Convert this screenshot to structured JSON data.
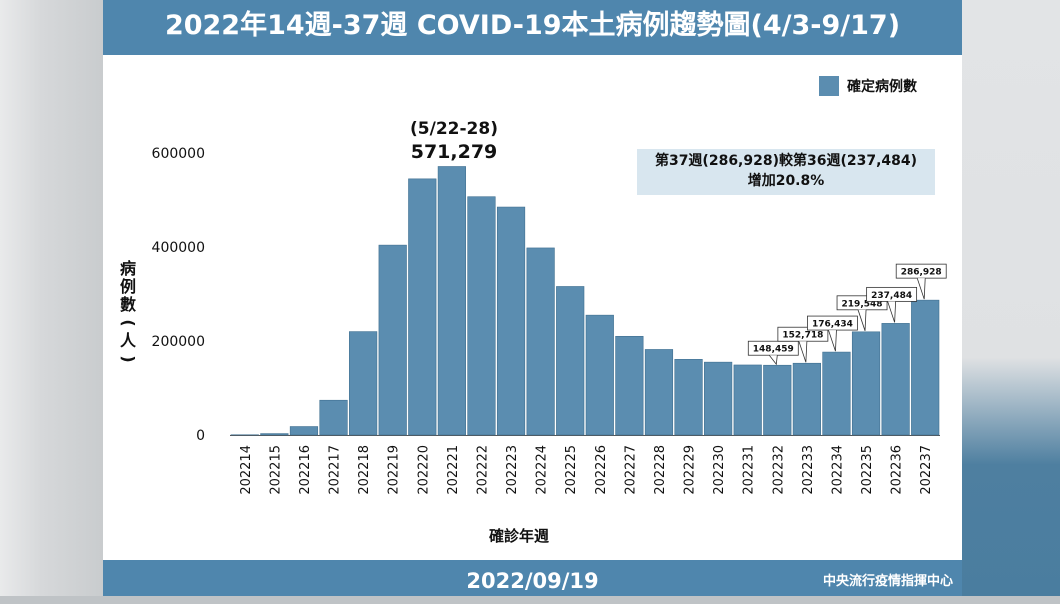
{
  "header": {
    "title": "2022年14週-37週 COVID-19本土病例趨勢圖(4/3-9/17)"
  },
  "footer": {
    "date": "2022/09/19",
    "org": "中央流行疫情指揮中心"
  },
  "legend": {
    "label": "確定病例數",
    "color": "#5b8db0"
  },
  "peak": {
    "range": "(5/22-28)",
    "value": "571,279"
  },
  "note": {
    "line1": "第37週(286,928)較第36週(237,484)",
    "line2": "增加20.8%"
  },
  "chart_data": {
    "type": "bar",
    "ylabel_chars": [
      "病",
      "例",
      "數",
      "(",
      "人",
      ")"
    ],
    "xlabel": "確診年週",
    "ylim": [
      0,
      600000
    ],
    "yticks": [
      "0",
      "200000",
      "400000",
      "600000"
    ],
    "ytick_values": [
      0,
      200000,
      400000,
      600000
    ],
    "categories": [
      "202214",
      "202215",
      "202216",
      "202217",
      "202218",
      "202219",
      "202220",
      "202221",
      "202222",
      "202223",
      "202224",
      "202225",
      "202226",
      "202227",
      "202228",
      "202229",
      "202230",
      "202231",
      "202232",
      "202233",
      "202234",
      "202235",
      "202236",
      "202237"
    ],
    "values": [
      500,
      3000,
      18000,
      74000,
      220000,
      404000,
      545000,
      571279,
      507000,
      485000,
      398000,
      316000,
      255000,
      210000,
      182000,
      161000,
      155000,
      149000,
      148459,
      152718,
      176434,
      219548,
      237484,
      286928
    ],
    "labels": [
      {
        "category": "202232",
        "text": "148,459"
      },
      {
        "category": "202233",
        "text": "152,718"
      },
      {
        "category": "202234",
        "text": "176,434"
      },
      {
        "category": "202235",
        "text": "219,548"
      },
      {
        "category": "202236",
        "text": "237,484"
      },
      {
        "category": "202237",
        "text": "286,928"
      }
    ],
    "bar_color": "#5b8db0"
  }
}
